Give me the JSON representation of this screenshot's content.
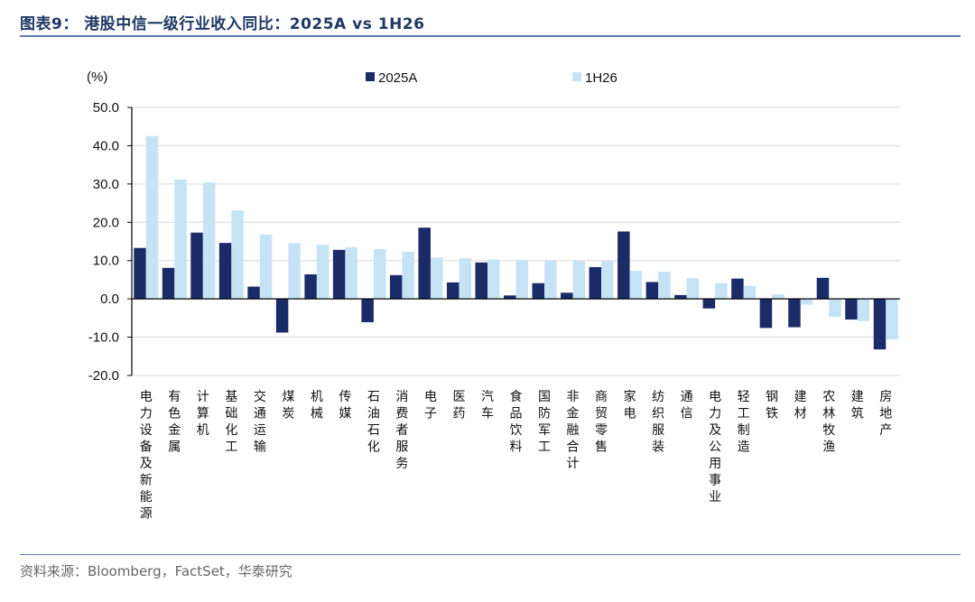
{
  "header": {
    "title": "图表9：  港股中信一级行业收入同比：2025A vs 1H26"
  },
  "footer": {
    "source": "资料来源：Bloomberg，FactSet，华泰研究"
  },
  "colors": {
    "series_2025A": "#1a2b68",
    "series_1H26": "#c5e3f5",
    "grid": "#d9d9d9",
    "axis": "#000000",
    "accent": "#1f3864"
  },
  "chart_data": {
    "type": "bar",
    "title": "",
    "ylabel": "(%)",
    "xlabel": "",
    "ylim": [
      -20,
      50
    ],
    "yticks": [
      "50.0",
      "40.0",
      "30.0",
      "20.0",
      "10.0",
      "0.0",
      "-10.0",
      "-20.0"
    ],
    "ytick_values": [
      50,
      40,
      30,
      20,
      10,
      0,
      -10,
      -20
    ],
    "grid": true,
    "legend_position": "top",
    "categories": [
      "电力设备及新能源",
      "有色金属",
      "计算机",
      "基础化工",
      "交通运输",
      "煤炭",
      "机械",
      "传媒",
      "石油石化",
      "消费者服务",
      "电子",
      "医药",
      "汽车",
      "食品饮料",
      "国防军工",
      "非金融合计",
      "商贸零售",
      "家电",
      "纺织服装",
      "通信",
      "电力及公用事业",
      "轻工制造",
      "钢铁",
      "建材",
      "农林牧渔",
      "建筑",
      "房地产"
    ],
    "series": [
      {
        "name": "2025A",
        "values": [
          13.3,
          8.1,
          17.3,
          14.6,
          3.2,
          -8.8,
          6.4,
          12.8,
          -6.1,
          6.2,
          18.6,
          4.3,
          9.5,
          0.9,
          4.1,
          1.6,
          8.3,
          17.6,
          4.4,
          1.0,
          -2.5,
          5.3,
          -7.6,
          -7.4,
          5.5,
          -5.4,
          -13.2
        ]
      },
      {
        "name": "1H26",
        "values": [
          42.5,
          31.2,
          30.4,
          23.1,
          16.8,
          14.6,
          14.1,
          13.5,
          13.0,
          12.3,
          10.8,
          10.6,
          10.3,
          10.1,
          10.0,
          9.9,
          9.8,
          7.3,
          7.1,
          5.4,
          4.1,
          3.4,
          1.2,
          -1.5,
          -4.7,
          -5.8,
          -10.6
        ]
      }
    ]
  }
}
